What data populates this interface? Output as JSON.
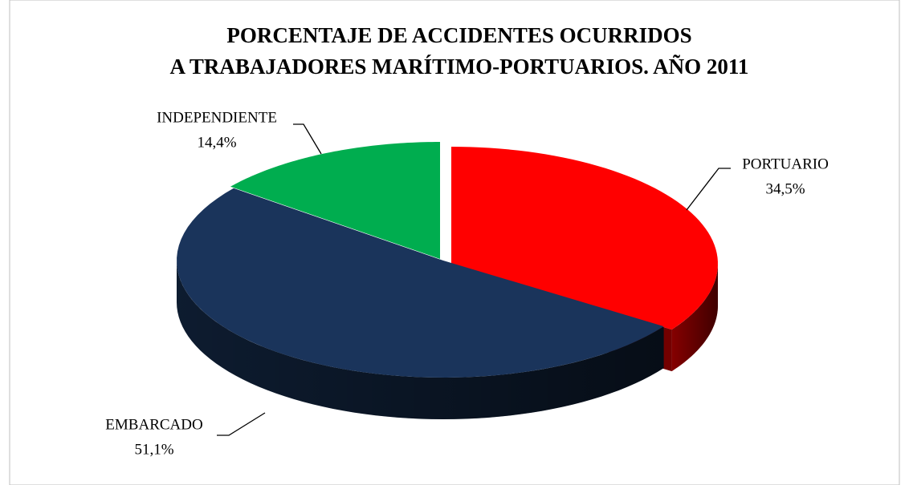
{
  "chart_data": {
    "type": "pie3d",
    "title": [
      "PORCENTAJE DE ACCIDENTES OCURRIDOS",
      "A TRABAJADORES MARÍTIMO-PORTUARIOS.  AÑO 2011"
    ],
    "categories": [
      "PORTUARIO",
      "EMBARCADO",
      "INDEPENDIENTE"
    ],
    "values": [
      34.5,
      51.1,
      14.4
    ],
    "value_labels": [
      "34,5%",
      "51,1%",
      "14,4%"
    ],
    "colors": [
      "#ff0000",
      "#1a345b",
      "#00ad4f"
    ]
  }
}
